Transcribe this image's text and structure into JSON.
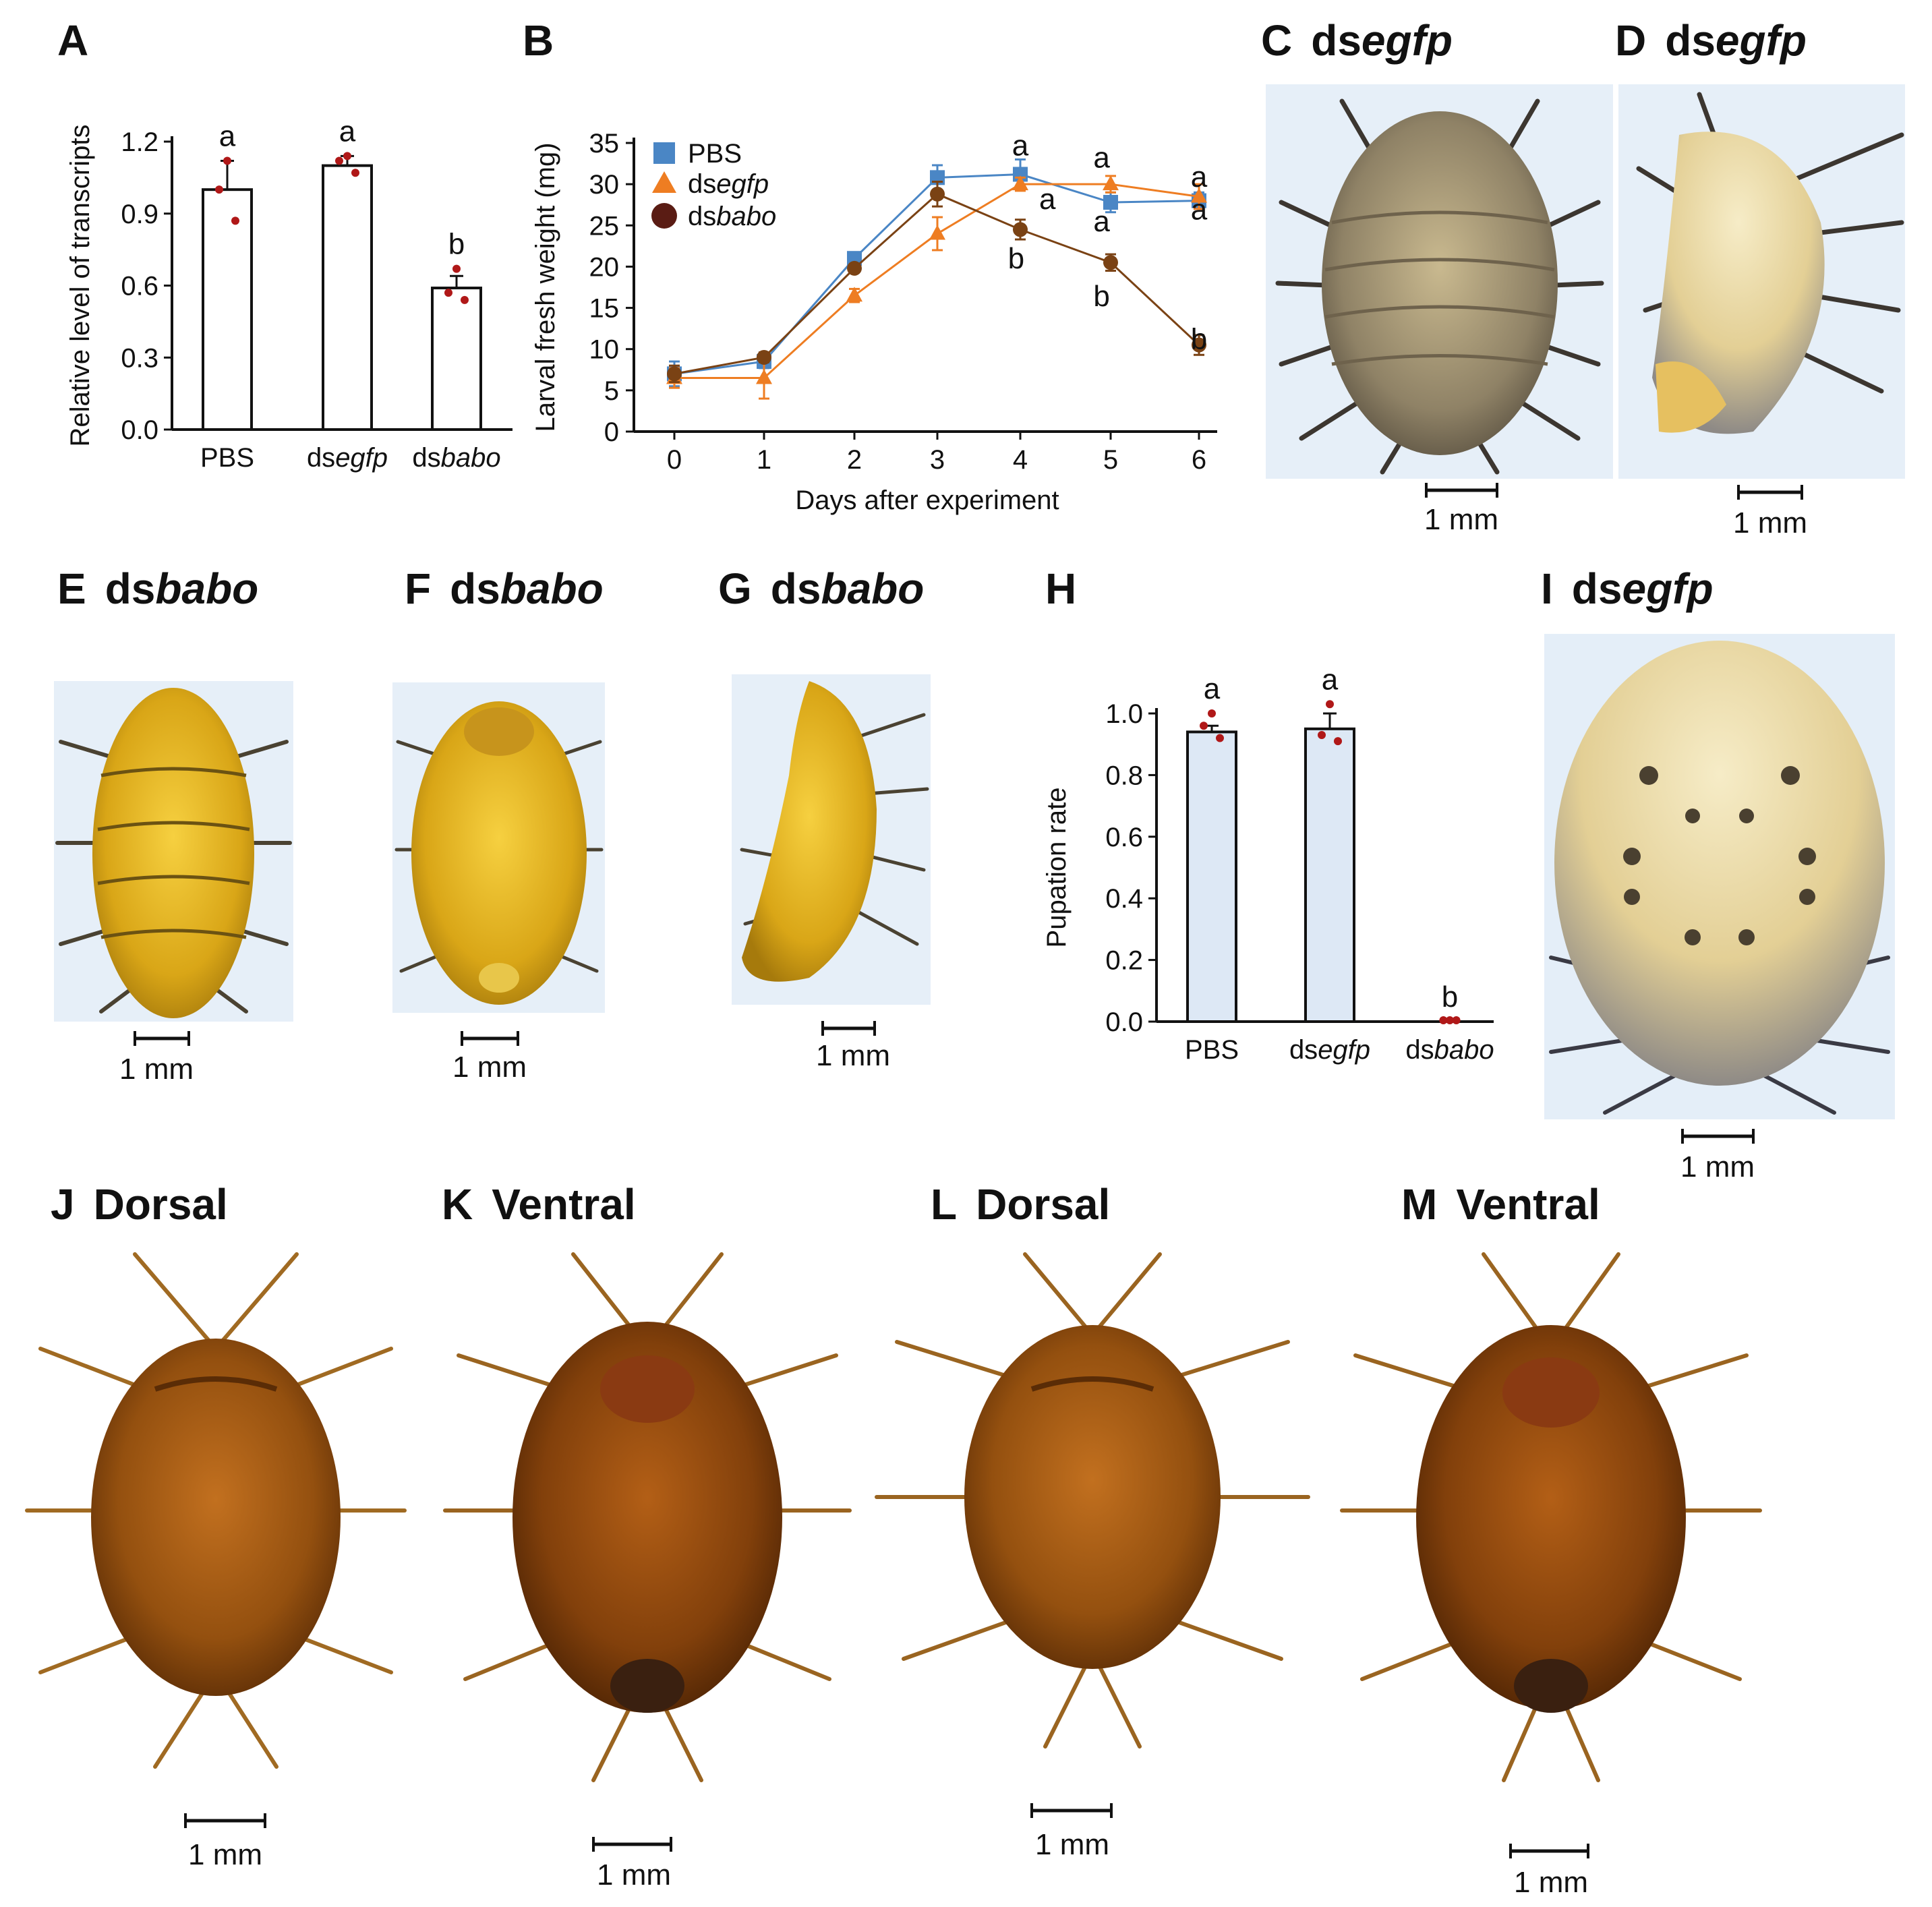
{
  "panels": {
    "A": {
      "letter": "A"
    },
    "B": {
      "letter": "B"
    },
    "C": {
      "letter": "C",
      "prefix": "ds",
      "gene": "egfp",
      "scale": "1 mm"
    },
    "D": {
      "letter": "D",
      "prefix": "ds",
      "gene": "egfp",
      "scale": "1 mm"
    },
    "E": {
      "letter": "E",
      "prefix": "ds",
      "gene": "babo",
      "scale": "1 mm"
    },
    "F": {
      "letter": "F",
      "prefix": "ds",
      "gene": "babo",
      "scale": "1 mm"
    },
    "G": {
      "letter": "G",
      "prefix": "ds",
      "gene": "babo",
      "scale": "1 mm"
    },
    "H": {
      "letter": "H"
    },
    "I": {
      "letter": "I",
      "prefix": "ds",
      "gene": "egfp",
      "scale": "1 mm"
    },
    "J": {
      "letter": "J",
      "view": "Dorsal",
      "scale": "1 mm"
    },
    "K": {
      "letter": "K",
      "view": "Ventral",
      "scale": "1 mm"
    },
    "L": {
      "letter": "L",
      "view": "Dorsal",
      "scale": "1 mm"
    },
    "M": {
      "letter": "M",
      "view": "Ventral",
      "scale": "1 mm"
    }
  },
  "colors": {
    "pbs": "#4a86c5",
    "dsegfp": "#ee7d22",
    "dsbabo": "#7a4214",
    "dot": "#b01818",
    "barH": "#dde8f5",
    "bg_light": "#e4eef8",
    "larva_grey": "#9a8d70",
    "larva_yellow": "#e0b222",
    "larva_cream": "#ead9a4",
    "pupa_brown": "#9a5518"
  },
  "chart_data": [
    {
      "panel": "A",
      "type": "bar",
      "ylabel": "Relative level of transcripts",
      "ylim": [
        0,
        1.2
      ],
      "yticks": [
        "0.0",
        "0.3",
        "0.6",
        "0.9",
        "1.2"
      ],
      "categories": [
        {
          "prefix": "",
          "italic": "PBS"
        },
        {
          "prefix": "ds",
          "italic": "egfp"
        },
        {
          "prefix": "ds",
          "italic": "babo"
        }
      ],
      "values": [
        1.0,
        1.1,
        0.59
      ],
      "errors": [
        0.12,
        0.04,
        0.05
      ],
      "points": [
        [
          1.12,
          1.0,
          0.87
        ],
        [
          1.14,
          1.12,
          1.07
        ],
        [
          0.67,
          0.57,
          0.54
        ]
      ],
      "letters": [
        "a",
        "a",
        "b"
      ]
    },
    {
      "panel": "B",
      "type": "line",
      "xlabel": "Days after experiment",
      "ylabel": "Larval fresh weight (mg)",
      "ylim": [
        0,
        35
      ],
      "yticks": [
        "0",
        "5",
        "10",
        "15",
        "20",
        "25",
        "30",
        "35"
      ],
      "x": [
        0,
        1,
        2,
        3,
        4,
        5,
        6
      ],
      "series": [
        {
          "prefix": "PBS",
          "italic": "",
          "marker": "square",
          "values": [
            7.0,
            8.5,
            21.0,
            30.8,
            31.2,
            27.8,
            28.0
          ],
          "errors": [
            1.5,
            0.8,
            0.6,
            1.5,
            1.8,
            1.2,
            1.0
          ]
        },
        {
          "prefix": "ds",
          "italic": "egfp",
          "marker": "triangle",
          "values": [
            6.5,
            6.5,
            16.5,
            24.0,
            30.0,
            30.0,
            28.5
          ],
          "errors": [
            1.2,
            2.5,
            0.8,
            2.0,
            0.8,
            1.0,
            1.5
          ]
        },
        {
          "prefix": "ds",
          "italic": "babo",
          "marker": "circle",
          "values": [
            7.0,
            9.0,
            19.8,
            28.8,
            24.5,
            20.5,
            10.5
          ],
          "errors": [
            1.0,
            0.6,
            0.5,
            1.5,
            1.2,
            1.0,
            1.2
          ]
        }
      ],
      "annotations": [
        {
          "text": "a",
          "x": 4,
          "y": 33.5
        },
        {
          "text": "a",
          "x": 4.3,
          "y": 27.0
        },
        {
          "text": "b",
          "x": 3.95,
          "y": 19.8
        },
        {
          "text": "a",
          "x": 4.9,
          "y": 32.0
        },
        {
          "text": "a",
          "x": 4.9,
          "y": 24.3
        },
        {
          "text": "b",
          "x": 4.9,
          "y": 15.2
        },
        {
          "text": "a",
          "x": 6.3,
          "y": 29.7
        },
        {
          "text": "a",
          "x": 6.3,
          "y": 25.7
        },
        {
          "text": "b",
          "x": 6.3,
          "y": 10.0
        }
      ]
    },
    {
      "panel": "H",
      "type": "bar",
      "ylabel": "Pupation rate",
      "ylim": [
        0,
        1.0
      ],
      "yticks": [
        "0.0",
        "0.2",
        "0.4",
        "0.6",
        "0.8",
        "1.0"
      ],
      "categories": [
        {
          "prefix": "",
          "italic": "PBS"
        },
        {
          "prefix": "ds",
          "italic": "egfp"
        },
        {
          "prefix": "ds",
          "italic": "babo"
        }
      ],
      "values": [
        0.94,
        0.95,
        0.0
      ],
      "errors": [
        0.02,
        0.05,
        0.0
      ],
      "points": [
        [
          1.0,
          0.96,
          0.92
        ],
        [
          1.03,
          0.93,
          0.91
        ],
        [
          0.0,
          0.0,
          0.0
        ]
      ],
      "letters": [
        "a",
        "a",
        "b"
      ]
    }
  ]
}
